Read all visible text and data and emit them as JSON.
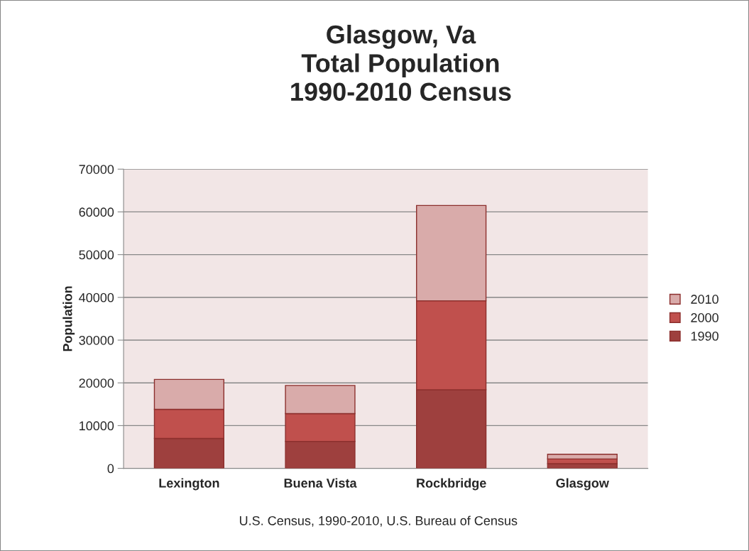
{
  "chart_data": {
    "type": "bar",
    "title": "Glasgow, Va\nTotal Population\n1990-2010 Census",
    "ylabel": "Population",
    "annotations": [
      "U.S. Census, 1990-2010, U.S. Bureau of Census"
    ],
    "categories": [
      "Lexington",
      "Buena Vista",
      "Rockbridge",
      "Glasgow"
    ],
    "stacked": true,
    "series": [
      {
        "name": "1990",
        "color": "#9e403e",
        "values": [
          7000,
          6300,
          18400,
          1100
        ]
      },
      {
        "name": "2000",
        "color": "#c0504d",
        "values": [
          6800,
          6500,
          20800,
          1100
        ]
      },
      {
        "name": "2010",
        "color": "#d9abaa",
        "values": [
          7000,
          6600,
          22300,
          1100
        ]
      }
    ],
    "ylim": [
      0,
      70000
    ],
    "yticks": [
      0,
      10000,
      20000,
      30000,
      40000,
      50000,
      60000,
      70000
    ],
    "grid": "y",
    "legend": "right"
  }
}
